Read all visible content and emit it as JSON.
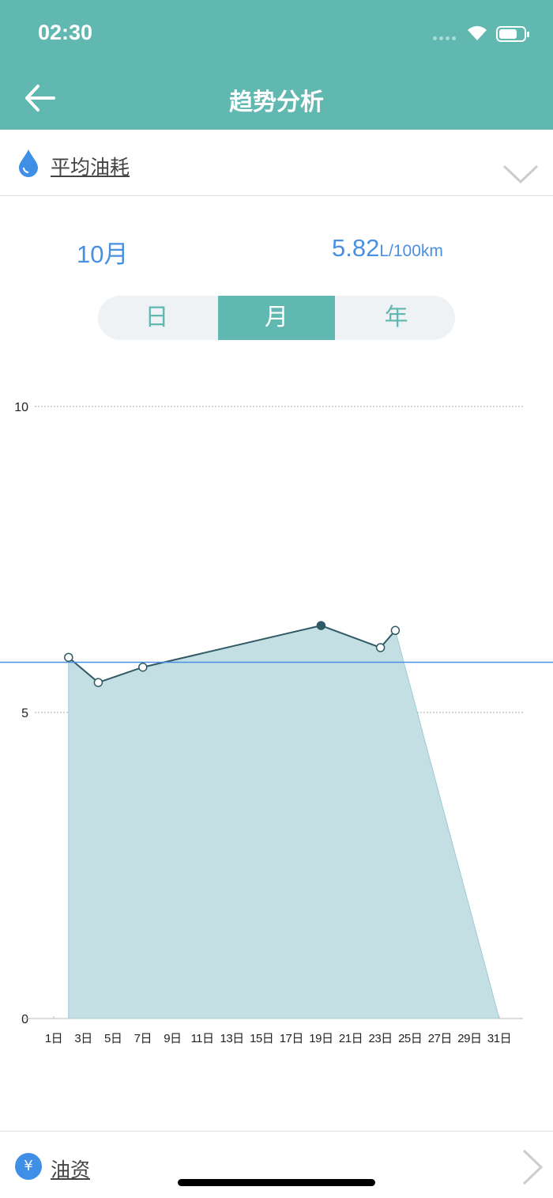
{
  "status_bar": {
    "time": "02:30"
  },
  "nav": {
    "title": "趋势分析",
    "back_icon": "arrow-left-icon"
  },
  "metric_selector": {
    "label": "平均油耗",
    "icon": "water-drop-icon",
    "chevron": "chevron-down-icon"
  },
  "summary": {
    "period": "10月",
    "value": "5.82",
    "unit": "L/100km"
  },
  "segments": [
    {
      "label": "日",
      "active": false
    },
    {
      "label": "月",
      "active": true
    },
    {
      "label": "年",
      "active": false
    }
  ],
  "chart_data": {
    "type": "area",
    "x_tick_labels": [
      "1日",
      "3日",
      "5日",
      "7日",
      "9日",
      "11日",
      "13日",
      "15日",
      "17日",
      "19日",
      "21日",
      "23日",
      "25日",
      "27日",
      "29日",
      "31日"
    ],
    "y_tick_labels": [
      "0",
      "5",
      "10"
    ],
    "ylim": [
      0,
      10
    ],
    "xlim": [
      1,
      31
    ],
    "grid": true,
    "average_line": 5.82,
    "series": [
      {
        "x": [
          2,
          4,
          7,
          19,
          23,
          24
        ],
        "y": [
          5.9,
          5.49,
          5.74,
          6.42,
          6.06,
          6.34
        ]
      }
    ],
    "highlighted_point": 19,
    "colors": {
      "fill": "#c3dfe3",
      "line": "#2f5a66",
      "average": "#4a90e2"
    }
  },
  "bottom_row": {
    "label": "油资",
    "icon": "yen-icon"
  }
}
